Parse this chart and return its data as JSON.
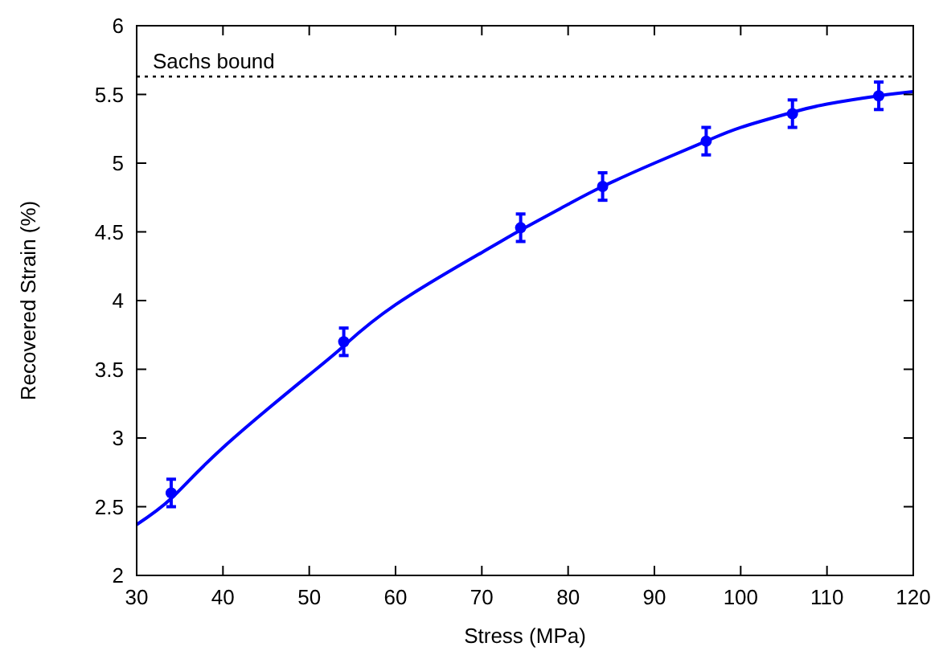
{
  "chart_data": {
    "type": "scatter",
    "xlabel": "Stress (MPa)",
    "ylabel": "Recovered Strain (%)",
    "xlim": [
      30,
      120
    ],
    "ylim": [
      2,
      6
    ],
    "xticks": [
      30,
      40,
      50,
      60,
      70,
      80,
      90,
      100,
      110,
      120
    ],
    "yticks": [
      2,
      2.5,
      3,
      3.5,
      4,
      4.5,
      5,
      5.5,
      6
    ],
    "grid": false,
    "series": [
      {
        "marker": "circle",
        "color": "#0000ff",
        "x": [
          34,
          54,
          74.5,
          84,
          96,
          106,
          116
        ],
        "values": [
          2.6,
          3.7,
          4.53,
          4.83,
          5.16,
          5.36,
          5.49
        ],
        "errors": [
          0.1,
          0.1,
          0.1,
          0.1,
          0.1,
          0.1,
          0.1
        ]
      },
      {
        "type": "line",
        "color": "#0000ff",
        "line_style": "solid",
        "x": [
          30,
          34,
          40,
          50,
          54,
          60,
          70,
          75,
          80,
          84,
          90,
          96,
          100,
          106,
          110,
          116,
          120
        ],
        "values": [
          2.37,
          2.56,
          2.93,
          3.46,
          3.67,
          3.97,
          4.35,
          4.53,
          4.7,
          4.83,
          5.0,
          5.16,
          5.26,
          5.37,
          5.43,
          5.49,
          5.52
        ]
      }
    ],
    "ref_lines": [
      {
        "axis": "y",
        "value": 5.63,
        "label": "Sachs bound",
        "color": "#000000",
        "line_style": "dotted"
      }
    ]
  }
}
